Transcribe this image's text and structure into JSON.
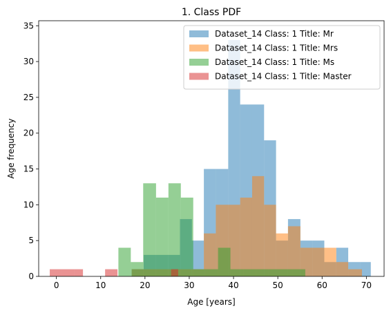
{
  "chart_data": {
    "type": "bar",
    "title": "1. Class PDF",
    "xlabel": "Age [years]",
    "ylabel": "Age frequency",
    "xlim": [
      -4,
      74
    ],
    "ylim": [
      0,
      35.7
    ],
    "xticks": [
      0,
      10,
      20,
      30,
      40,
      50,
      60,
      70
    ],
    "yticks": [
      0,
      5,
      10,
      15,
      20,
      25,
      30,
      35
    ],
    "grid": false,
    "legend_position": "top-right",
    "series": [
      {
        "name": "Dataset_14 Class: 1 Title: Mr",
        "color": "#1f77b4",
        "bins": [
          {
            "x0": 17.0,
            "x1": 19.7,
            "count": 1
          },
          {
            "x0": 19.7,
            "x1": 22.5,
            "count": 3
          },
          {
            "x0": 22.5,
            "x1": 25.2,
            "count": 3
          },
          {
            "x0": 25.2,
            "x1": 27.9,
            "count": 3
          },
          {
            "x0": 27.9,
            "x1": 30.6,
            "count": 8
          },
          {
            "x0": 30.6,
            "x1": 33.3,
            "count": 5
          },
          {
            "x0": 33.3,
            "x1": 36.0,
            "count": 15
          },
          {
            "x0": 36.0,
            "x1": 38.8,
            "count": 15
          },
          {
            "x0": 38.8,
            "x1": 41.5,
            "count": 33
          },
          {
            "x0": 41.5,
            "x1": 44.2,
            "count": 24
          },
          {
            "x0": 44.2,
            "x1": 46.9,
            "count": 24
          },
          {
            "x0": 46.9,
            "x1": 49.6,
            "count": 19
          },
          {
            "x0": 49.6,
            "x1": 52.3,
            "count": 5
          },
          {
            "x0": 52.3,
            "x1": 55.1,
            "count": 8
          },
          {
            "x0": 55.1,
            "x1": 57.8,
            "count": 5
          },
          {
            "x0": 57.8,
            "x1": 60.5,
            "count": 5
          },
          {
            "x0": 60.5,
            "x1": 63.2,
            "count": 2
          },
          {
            "x0": 63.2,
            "x1": 65.9,
            "count": 4
          },
          {
            "x0": 65.9,
            "x1": 68.6,
            "count": 2
          },
          {
            "x0": 68.6,
            "x1": 71.0,
            "count": 2
          }
        ]
      },
      {
        "name": "Dataset_14 Class: 1 Title: Mrs",
        "color": "#ff7f0e",
        "bins": [
          {
            "x0": 17.0,
            "x1": 19.7,
            "count": 1
          },
          {
            "x0": 19.7,
            "x1": 22.5,
            "count": 1
          },
          {
            "x0": 22.5,
            "x1": 25.2,
            "count": 1
          },
          {
            "x0": 25.2,
            "x1": 27.9,
            "count": 1
          },
          {
            "x0": 27.9,
            "x1": 30.6,
            "count": 1
          },
          {
            "x0": 30.6,
            "x1": 33.3,
            "count": 1
          },
          {
            "x0": 33.3,
            "x1": 36.0,
            "count": 6
          },
          {
            "x0": 36.0,
            "x1": 38.8,
            "count": 10
          },
          {
            "x0": 38.8,
            "x1": 41.5,
            "count": 10
          },
          {
            "x0": 41.5,
            "x1": 44.2,
            "count": 11
          },
          {
            "x0": 44.2,
            "x1": 46.9,
            "count": 14
          },
          {
            "x0": 46.9,
            "x1": 49.6,
            "count": 10
          },
          {
            "x0": 49.6,
            "x1": 52.3,
            "count": 6
          },
          {
            "x0": 52.3,
            "x1": 55.1,
            "count": 7
          },
          {
            "x0": 55.1,
            "x1": 57.8,
            "count": 4
          },
          {
            "x0": 57.8,
            "x1": 60.5,
            "count": 4
          },
          {
            "x0": 60.5,
            "x1": 63.2,
            "count": 4
          },
          {
            "x0": 63.2,
            "x1": 65.9,
            "count": 2
          },
          {
            "x0": 65.9,
            "x1": 69.0,
            "count": 1
          }
        ]
      },
      {
        "name": "Dataset_14 Class: 1 Title: Ms",
        "color": "#2ca02c",
        "bins": [
          {
            "x0": 14.0,
            "x1": 16.8,
            "count": 4
          },
          {
            "x0": 16.8,
            "x1": 19.6,
            "count": 2
          },
          {
            "x0": 19.6,
            "x1": 22.5,
            "count": 13
          },
          {
            "x0": 22.5,
            "x1": 25.3,
            "count": 11
          },
          {
            "x0": 25.3,
            "x1": 28.1,
            "count": 13
          },
          {
            "x0": 28.1,
            "x1": 30.9,
            "count": 11
          },
          {
            "x0": 30.9,
            "x1": 33.7,
            "count": 1
          },
          {
            "x0": 33.7,
            "x1": 36.5,
            "count": 1
          },
          {
            "x0": 36.5,
            "x1": 39.3,
            "count": 4
          },
          {
            "x0": 39.3,
            "x1": 42.2,
            "count": 1
          },
          {
            "x0": 42.2,
            "x1": 45.0,
            "count": 1
          },
          {
            "x0": 45.0,
            "x1": 47.8,
            "count": 1
          },
          {
            "x0": 47.8,
            "x1": 50.6,
            "count": 1
          },
          {
            "x0": 50.6,
            "x1": 53.4,
            "count": 1
          },
          {
            "x0": 53.4,
            "x1": 56.2,
            "count": 1
          }
        ]
      },
      {
        "name": "Dataset_14 Class: 1 Title: Master",
        "color": "#d62728",
        "bins": [
          {
            "x0": -1.5,
            "x1": 1.3,
            "count": 1
          },
          {
            "x0": 1.3,
            "x1": 4.1,
            "count": 1
          },
          {
            "x0": 4.1,
            "x1": 6.0,
            "count": 1
          },
          {
            "x0": 11.0,
            "x1": 13.8,
            "count": 1
          },
          {
            "x0": 25.9,
            "x1": 27.5,
            "count": 1
          }
        ]
      }
    ]
  }
}
